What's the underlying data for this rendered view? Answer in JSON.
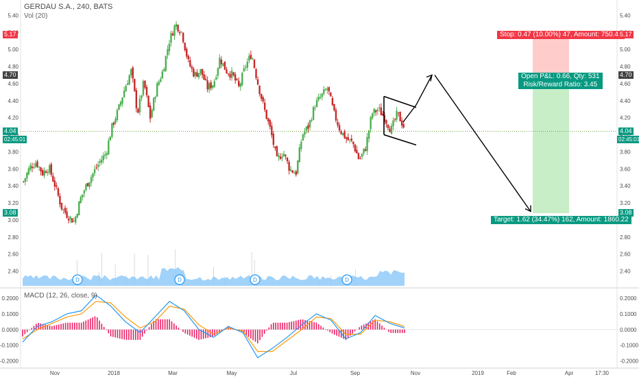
{
  "header": {
    "title": "GERDAU S.A., 240, BATS",
    "volume_label": "Vol (20)",
    "macd_label": "MACD (12, 26, close, 9)"
  },
  "price_tags": {
    "stop": "5.17",
    "open": "4.70",
    "last": "4.04",
    "last_time": "02:45:01",
    "target": "3.08"
  },
  "annotations": {
    "stop": "Stop: 0.47 (10.00%) 47, Amount: 750.43",
    "open_pl": "Open P&L: 0.66, Qty: 531",
    "risk_reward": "Risk/Reward Ratio: 3.45",
    "target": "Target: 1.62 (34.47%) 162, Amount: 1860.22"
  },
  "dividend_marker": "D",
  "colors": {
    "up": "#4caf50",
    "down": "#c62828",
    "volume": "#90caf9",
    "macd": "#2196f3",
    "signal": "#ff9800",
    "histogram": "#e91e63",
    "stop_zone": "#ffcccc",
    "target_zone": "#c8eec8",
    "red_tag": "#f23645",
    "green_tag": "#089981",
    "dark_tag": "#424242"
  },
  "chart_data": [
    {
      "type": "candlestick",
      "ylim": [
        2.3,
        5.5
      ],
      "y_ticks": [
        "5.40",
        "5.20",
        "5.00",
        "4.80",
        "4.60",
        "4.40",
        "4.20",
        "4.00",
        "3.80",
        "3.60",
        "3.40",
        "3.20",
        "3.00",
        "2.80",
        "2.60",
        "2.40"
      ],
      "x_ticks": [
        "Nov",
        "2018",
        "Mar",
        "May",
        "Jul",
        "Sep",
        "Nov",
        "2019",
        "Feb",
        "Apr",
        "17:30"
      ],
      "close_path": [
        3.45,
        3.62,
        3.68,
        3.55,
        3.62,
        3.4,
        3.15,
        3.05,
        2.98,
        3.25,
        3.42,
        3.55,
        3.68,
        3.78,
        4.1,
        4.3,
        4.55,
        4.75,
        4.25,
        4.62,
        4.2,
        4.55,
        4.75,
        5.1,
        5.3,
        5.2,
        4.85,
        4.7,
        4.75,
        4.55,
        4.6,
        4.9,
        4.75,
        4.7,
        4.55,
        4.8,
        4.95,
        4.6,
        4.3,
        4.05,
        3.7,
        3.8,
        3.6,
        3.55,
        4.0,
        4.1,
        4.35,
        4.45,
        4.55,
        4.25,
        4.05,
        3.95,
        3.9,
        3.7,
        3.85,
        4.25,
        4.3,
        4.2,
        4.05,
        4.25,
        4.1
      ],
      "last_price": 4.04,
      "trade": {
        "entry": 4.7,
        "stop": 5.17,
        "target": 3.08
      },
      "projection": [
        4.15,
        4.35,
        4.7,
        3.1
      ],
      "flag_pattern": {
        "upper": [
          4.45,
          4.32
        ],
        "lower": [
          4.0,
          3.88
        ]
      }
    },
    {
      "type": "bar",
      "series_name": "Vol (20)",
      "dividend_count": 4
    },
    {
      "type": "line",
      "title": "MACD (12, 26, close, 9)",
      "ylim": [
        -0.22,
        0.24
      ],
      "y_ticks": [
        "0.2000",
        "0.1000",
        "0.0000",
        "-0.1000",
        "-0.2000"
      ],
      "series": [
        {
          "name": "MACD",
          "values": [
            -0.08,
            0.02,
            0.05,
            0.1,
            0.12,
            0.22,
            0.15,
            0.05,
            -0.02,
            0.08,
            0.18,
            0.12,
            0.0,
            -0.05,
            0.02,
            -0.02,
            -0.18,
            -0.12,
            -0.05,
            0.03,
            0.1,
            0.06,
            -0.06,
            -0.02,
            0.09,
            0.04,
            0.01
          ]
        },
        {
          "name": "Signal",
          "values": [
            -0.06,
            0.0,
            0.04,
            0.08,
            0.1,
            0.18,
            0.17,
            0.08,
            0.01,
            0.05,
            0.15,
            0.13,
            0.03,
            -0.03,
            0.01,
            -0.01,
            -0.14,
            -0.14,
            -0.07,
            0.0,
            0.08,
            0.07,
            -0.03,
            -0.03,
            0.06,
            0.05,
            0.02
          ]
        }
      ]
    }
  ]
}
